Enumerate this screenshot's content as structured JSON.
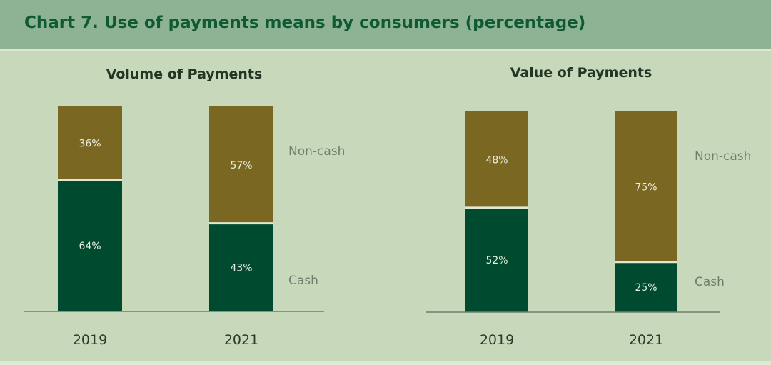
{
  "page_title": "Chart 7. Use of payments means by consumers (percentage)",
  "colors": {
    "header_bg": "#8db394",
    "title_text": "#0f5a32",
    "background": "#c8d9bb",
    "cash": "#004b2f",
    "non_cash": "#7a6722",
    "axis_text": "#2f3a2c",
    "series_label_text": "#6e7e6a",
    "bar_value_text": "#e9eedf"
  },
  "chart_data": [
    {
      "type": "bar",
      "stacked": true,
      "title": "Volume of Payments",
      "categories": [
        "2019",
        "2021"
      ],
      "series": [
        {
          "name": "Cash",
          "values": [
            64,
            43
          ],
          "labels": [
            "64%",
            "43%"
          ]
        },
        {
          "name": "Non-cash",
          "values": [
            36,
            57
          ],
          "labels": [
            "36%",
            "57%"
          ]
        }
      ],
      "ylim": [
        0,
        100
      ],
      "grid": false,
      "legend": "right of bars"
    },
    {
      "type": "bar",
      "stacked": true,
      "title": "Value of Payments",
      "categories": [
        "2019",
        "2021"
      ],
      "series": [
        {
          "name": "Cash",
          "values": [
            52,
            25
          ],
          "labels": [
            "52%",
            "25%"
          ]
        },
        {
          "name": "Non-cash",
          "values": [
            48,
            75
          ],
          "labels": [
            "48%",
            "75%"
          ]
        }
      ],
      "ylim": [
        0,
        100
      ],
      "grid": false,
      "legend": "right of bars"
    }
  ]
}
